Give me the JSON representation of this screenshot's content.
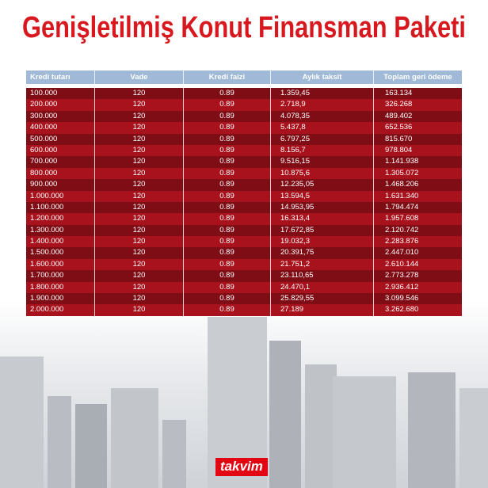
{
  "header": {
    "title": "Genişletilmiş Konut Finansman Paketi"
  },
  "table": {
    "columns": [
      "Kredi tutarı",
      "Vade",
      "Kredi faizi",
      "Aylık taksit",
      "Toplam geri ödeme"
    ],
    "rows": [
      [
        "100.000",
        "120",
        "0.89",
        "1.359,45",
        "163.134"
      ],
      [
        "200.000",
        "120",
        "0.89",
        "2.718,9",
        "326.268"
      ],
      [
        "300.000",
        "120",
        "0.89",
        "4.078,35",
        "489.402"
      ],
      [
        "400.000",
        "120",
        "0.89",
        "5.437,8",
        "652.536"
      ],
      [
        "500.000",
        "120",
        "0.89",
        "6.797,25",
        "815.670"
      ],
      [
        "600.000",
        "120",
        "0.89",
        "8.156,7",
        "978.804"
      ],
      [
        "700.000",
        "120",
        "0.89",
        "9.516,15",
        "1.141.938"
      ],
      [
        "800.000",
        "120",
        "0.89",
        "10.875,6",
        "1.305.072"
      ],
      [
        "900.000",
        "120",
        "0.89",
        "12.235,05",
        "1.468.206"
      ],
      [
        "1.000.000",
        "120",
        "0.89",
        "13.594,5",
        "1.631.340"
      ],
      [
        "1.100.000",
        "120",
        "0.89",
        "14.953,95",
        "1.794.474"
      ],
      [
        "1.200.000",
        "120",
        "0.89",
        "16.313,4",
        "1.957.608"
      ],
      [
        "1.300.000",
        "120",
        "0.89",
        "17.672,85",
        "2.120.742"
      ],
      [
        "1.400.000",
        "120",
        "0.89",
        "19.032,3",
        "2.283.876"
      ],
      [
        "1.500.000",
        "120",
        "0.89",
        "20.391,75",
        "2.447.010"
      ],
      [
        "1.600.000",
        "120",
        "0.89",
        "21.751,2",
        "2.610.144"
      ],
      [
        "1.700.000",
        "120",
        "0.89",
        "23.110,65",
        "2.773.278"
      ],
      [
        "1.800.000",
        "120",
        "0.89",
        "24.470,1",
        "2.936.412"
      ],
      [
        "1.900.000",
        "120",
        "0.89",
        "25.829,55",
        "3.099.546"
      ],
      [
        "2.000.000",
        "120",
        "0.89",
        "27.189",
        "3.262.680"
      ]
    ]
  },
  "logo": {
    "text": "takvim"
  }
}
